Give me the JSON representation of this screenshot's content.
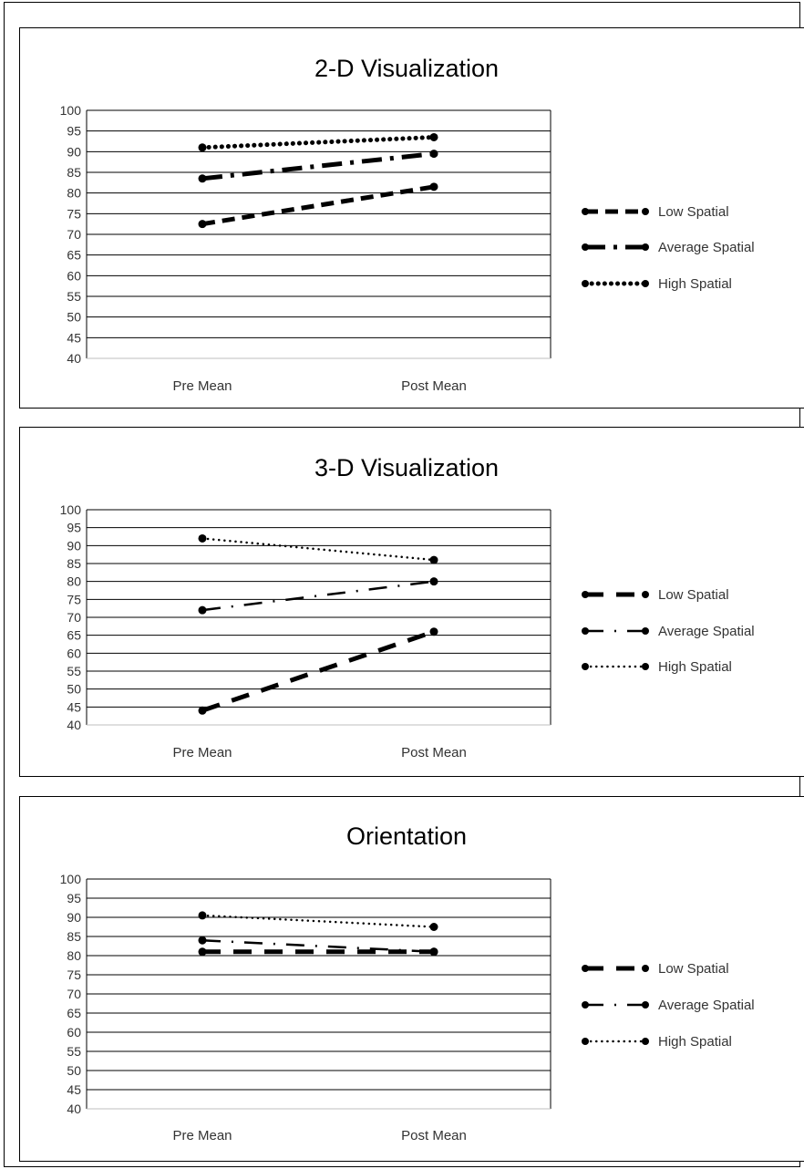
{
  "chart_data": [
    {
      "type": "line",
      "title": "2-D Visualization",
      "categories": [
        "Pre Mean",
        "Post Mean"
      ],
      "ylim": [
        40,
        100
      ],
      "ytick_step": 5,
      "grid": true,
      "legend_position": "right",
      "series": [
        {
          "name": "Low Spatial",
          "values": [
            72.5,
            81.5
          ],
          "style": "dash"
        },
        {
          "name": "Average Spatial",
          "values": [
            83.5,
            89.5
          ],
          "style": "dashdot"
        },
        {
          "name": "High Spatial",
          "values": [
            91,
            93.5
          ],
          "style": "dot"
        }
      ]
    },
    {
      "type": "line",
      "title": "3-D Visualization",
      "categories": [
        "Pre Mean",
        "Post Mean"
      ],
      "ylim": [
        40,
        100
      ],
      "ytick_step": 5,
      "grid": true,
      "legend_position": "right",
      "series": [
        {
          "name": "Low Spatial",
          "values": [
            44,
            66
          ],
          "style": "longdash"
        },
        {
          "name": "Average Spatial",
          "values": [
            72,
            80
          ],
          "style": "dashdot-thin"
        },
        {
          "name": "High Spatial",
          "values": [
            92,
            86
          ],
          "style": "dot-thin"
        }
      ]
    },
    {
      "type": "line",
      "title": "Orientation",
      "categories": [
        "Pre Mean",
        "Post Mean"
      ],
      "ylim": [
        40,
        100
      ],
      "ytick_step": 5,
      "grid": true,
      "legend_position": "right",
      "series": [
        {
          "name": "Low Spatial",
          "values": [
            81,
            81
          ],
          "style": "longdash"
        },
        {
          "name": "Average Spatial",
          "values": [
            84,
            81
          ],
          "style": "dashdot-thin"
        },
        {
          "name": "High Spatial",
          "values": [
            90.5,
            87.5
          ],
          "style": "dot-thin"
        }
      ]
    }
  ]
}
